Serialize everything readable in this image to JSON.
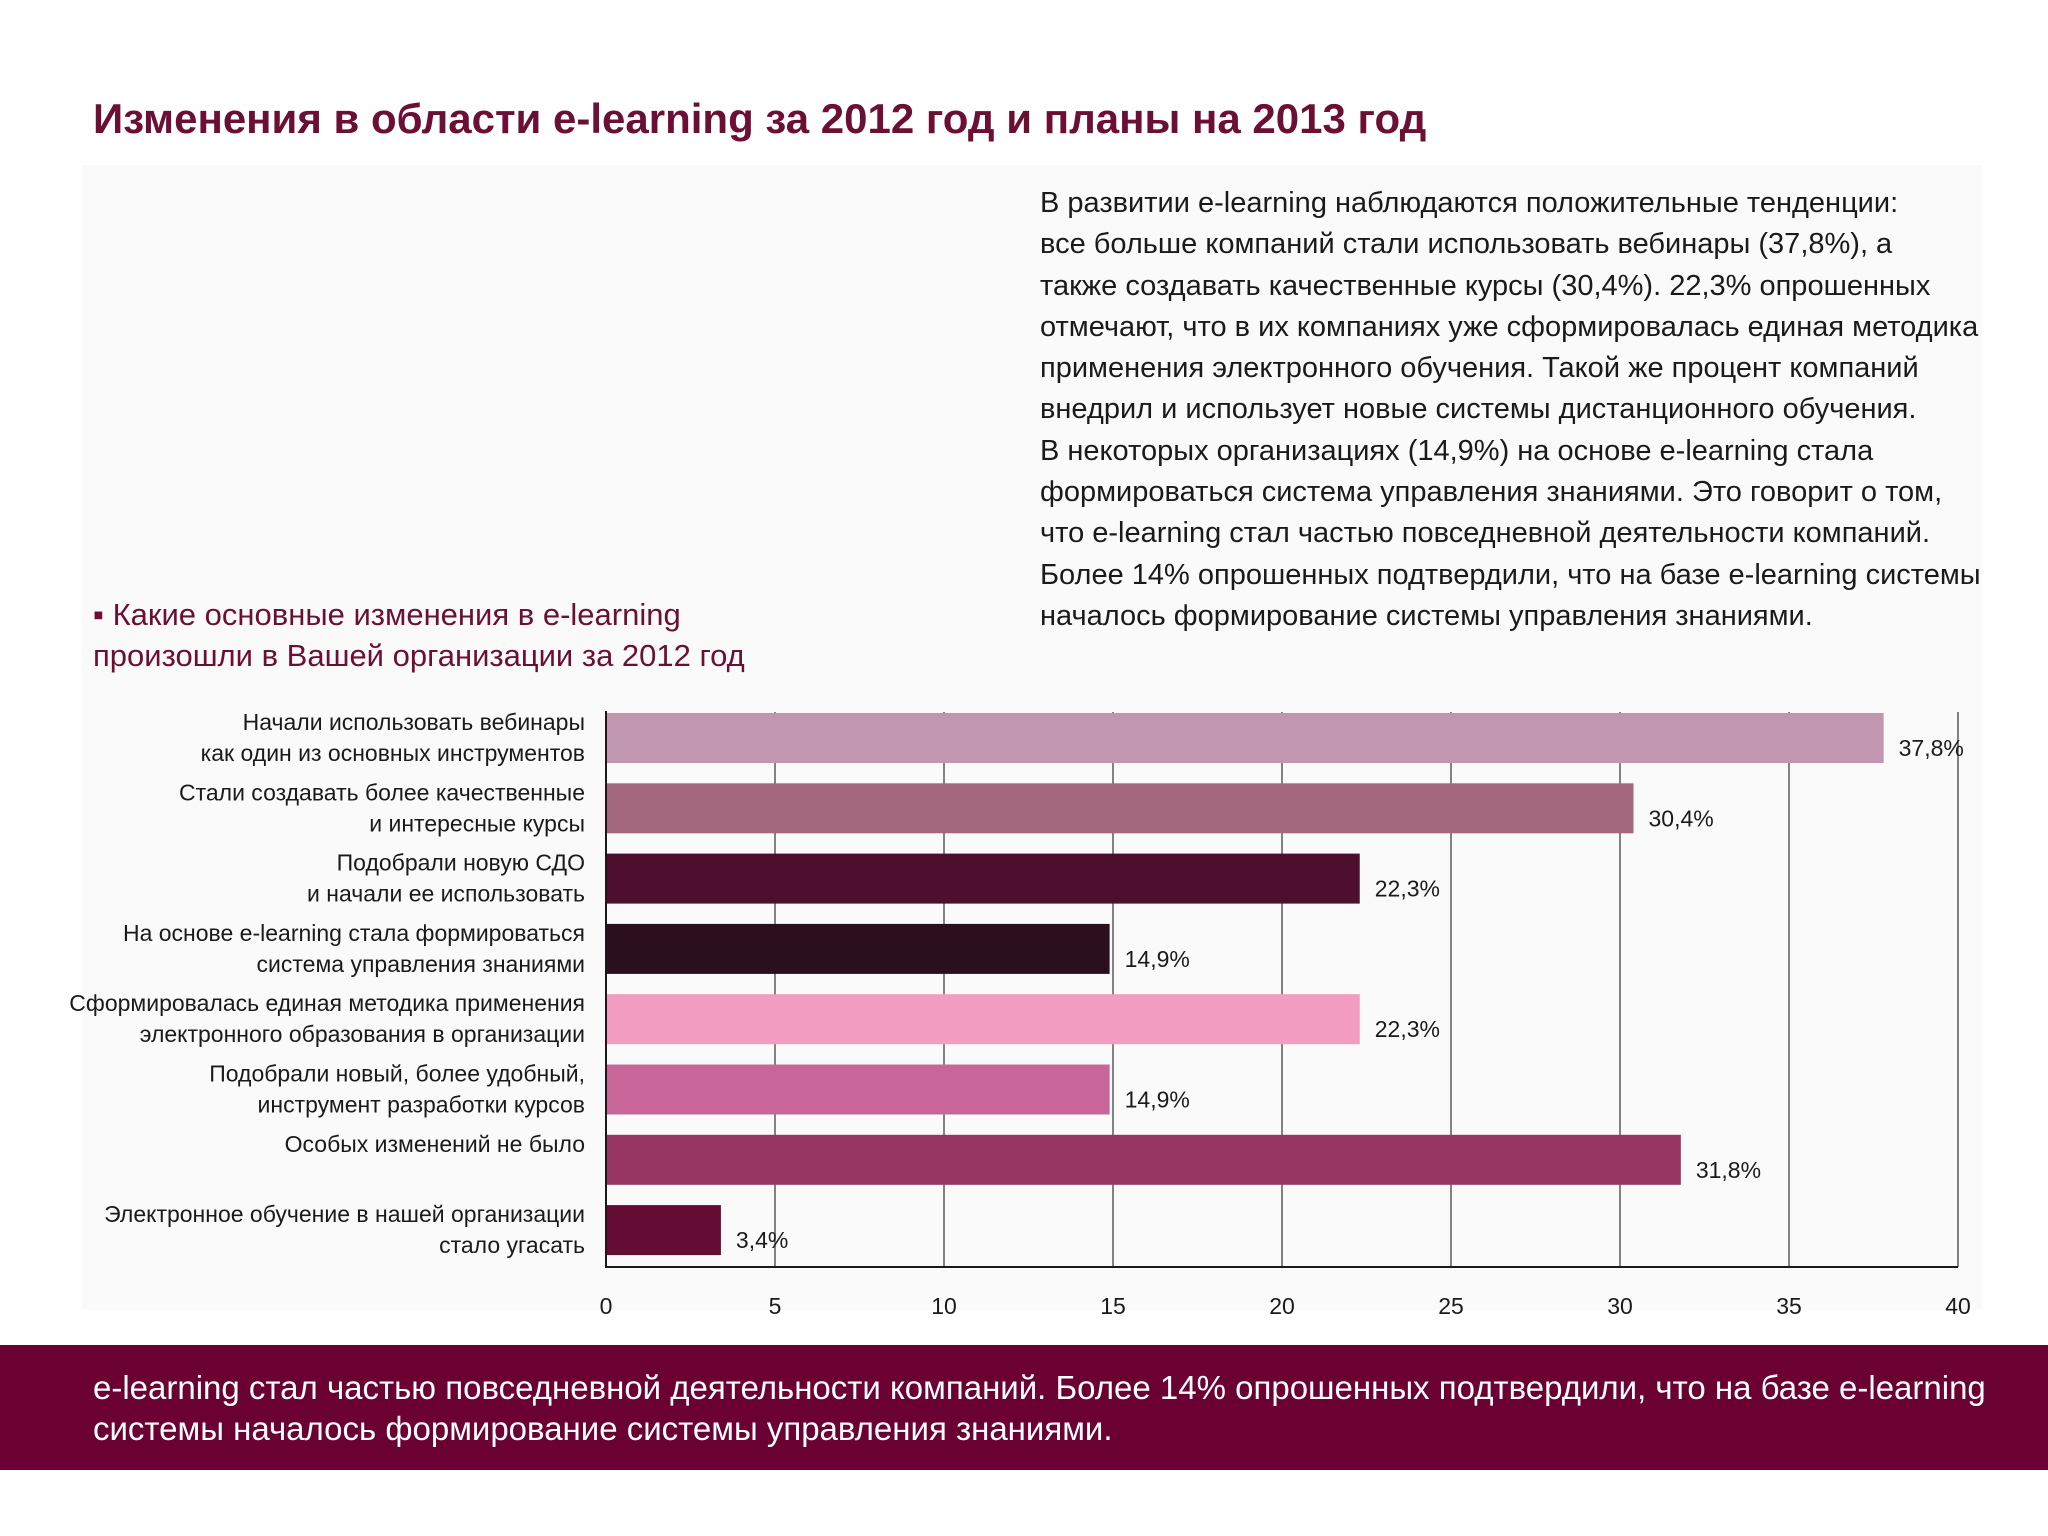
{
  "page": {
    "title": "Изменения в области e-learning за 2012 год и планы на 2013 год"
  },
  "intro": {
    "lines": [
      "В развитии e-learning наблюдаются положительные тенденции:",
      "все больше компаний стали использовать вебинары (37,8%), а",
      "также создавать качественные курсы (30,4%). 22,3% опрошенных",
      "отмечают, что в их компаниях уже сформировалась единая методика",
      "применения электронного обучения. Такой же процент компаний",
      "внедрил и использует новые системы дистанционного обучения.",
      "В некоторых организациях (14,9%) на основе e-learning стала",
      "формироваться система управления знаниями. Это говорит о том,",
      "что e-learning стал частью повседневной деятельности компаний.",
      "Более 14% опрошенных подтвердили, что на базе e-learning системы",
      "началось формирование системы управления знаниями."
    ]
  },
  "question": {
    "bullet": "▪",
    "line1": "Какие основные изменения в e-learning",
    "line2": "произошли в Вашей организации за 2012 год"
  },
  "chart_data": {
    "type": "bar",
    "orientation": "horizontal",
    "title": "",
    "xlabel": "",
    "ylabel": "",
    "xlim": [
      0,
      40
    ],
    "x_ticks": [
      0,
      5,
      10,
      15,
      20,
      25,
      30,
      35,
      40
    ],
    "x_tick_labels": [
      "0",
      "5",
      "10",
      "15",
      "20",
      "25",
      "30",
      "35",
      "40"
    ],
    "grid": "vertical",
    "legend": "none",
    "categories": [
      [
        "Начали использовать вебинары",
        "как один из основных инструментов"
      ],
      [
        "Стали создавать более качественные",
        "и интересные курсы"
      ],
      [
        "Подобрали новую СДО",
        "и начали ее использовать"
      ],
      [
        "На основе e-learning стала формироваться",
        "система управления знаниями"
      ],
      [
        "Сформировалась единая методика применения",
        "электронного образования в организации"
      ],
      [
        "Подобрали новый, более удобный,",
        "инструмент разработки курсов"
      ],
      [
        "Особых изменений не было"
      ],
      [
        "Электронное обучение в нашей организации",
        "стало угасать"
      ]
    ],
    "values": [
      37.8,
      30.4,
      22.3,
      14.9,
      22.3,
      14.9,
      31.8,
      3.4
    ],
    "value_labels": [
      "37,8%",
      "30,4%",
      "22,3%",
      "14,9%",
      "22,3%",
      "14,9%",
      "31,8%",
      "3,4%"
    ],
    "colors": [
      "#c197af",
      "#a3687f",
      "#4d0f2d",
      "#2b0f1e",
      "#f29cc2",
      "#c8669a",
      "#973563",
      "#650c34"
    ]
  },
  "footer": {
    "line1": "e-learning стал частью повседневной деятельности компаний. Более 14% опрошенных подтвердили, что на базе e-learning",
    "line2": "системы началось формирование системы управления знаниями."
  }
}
